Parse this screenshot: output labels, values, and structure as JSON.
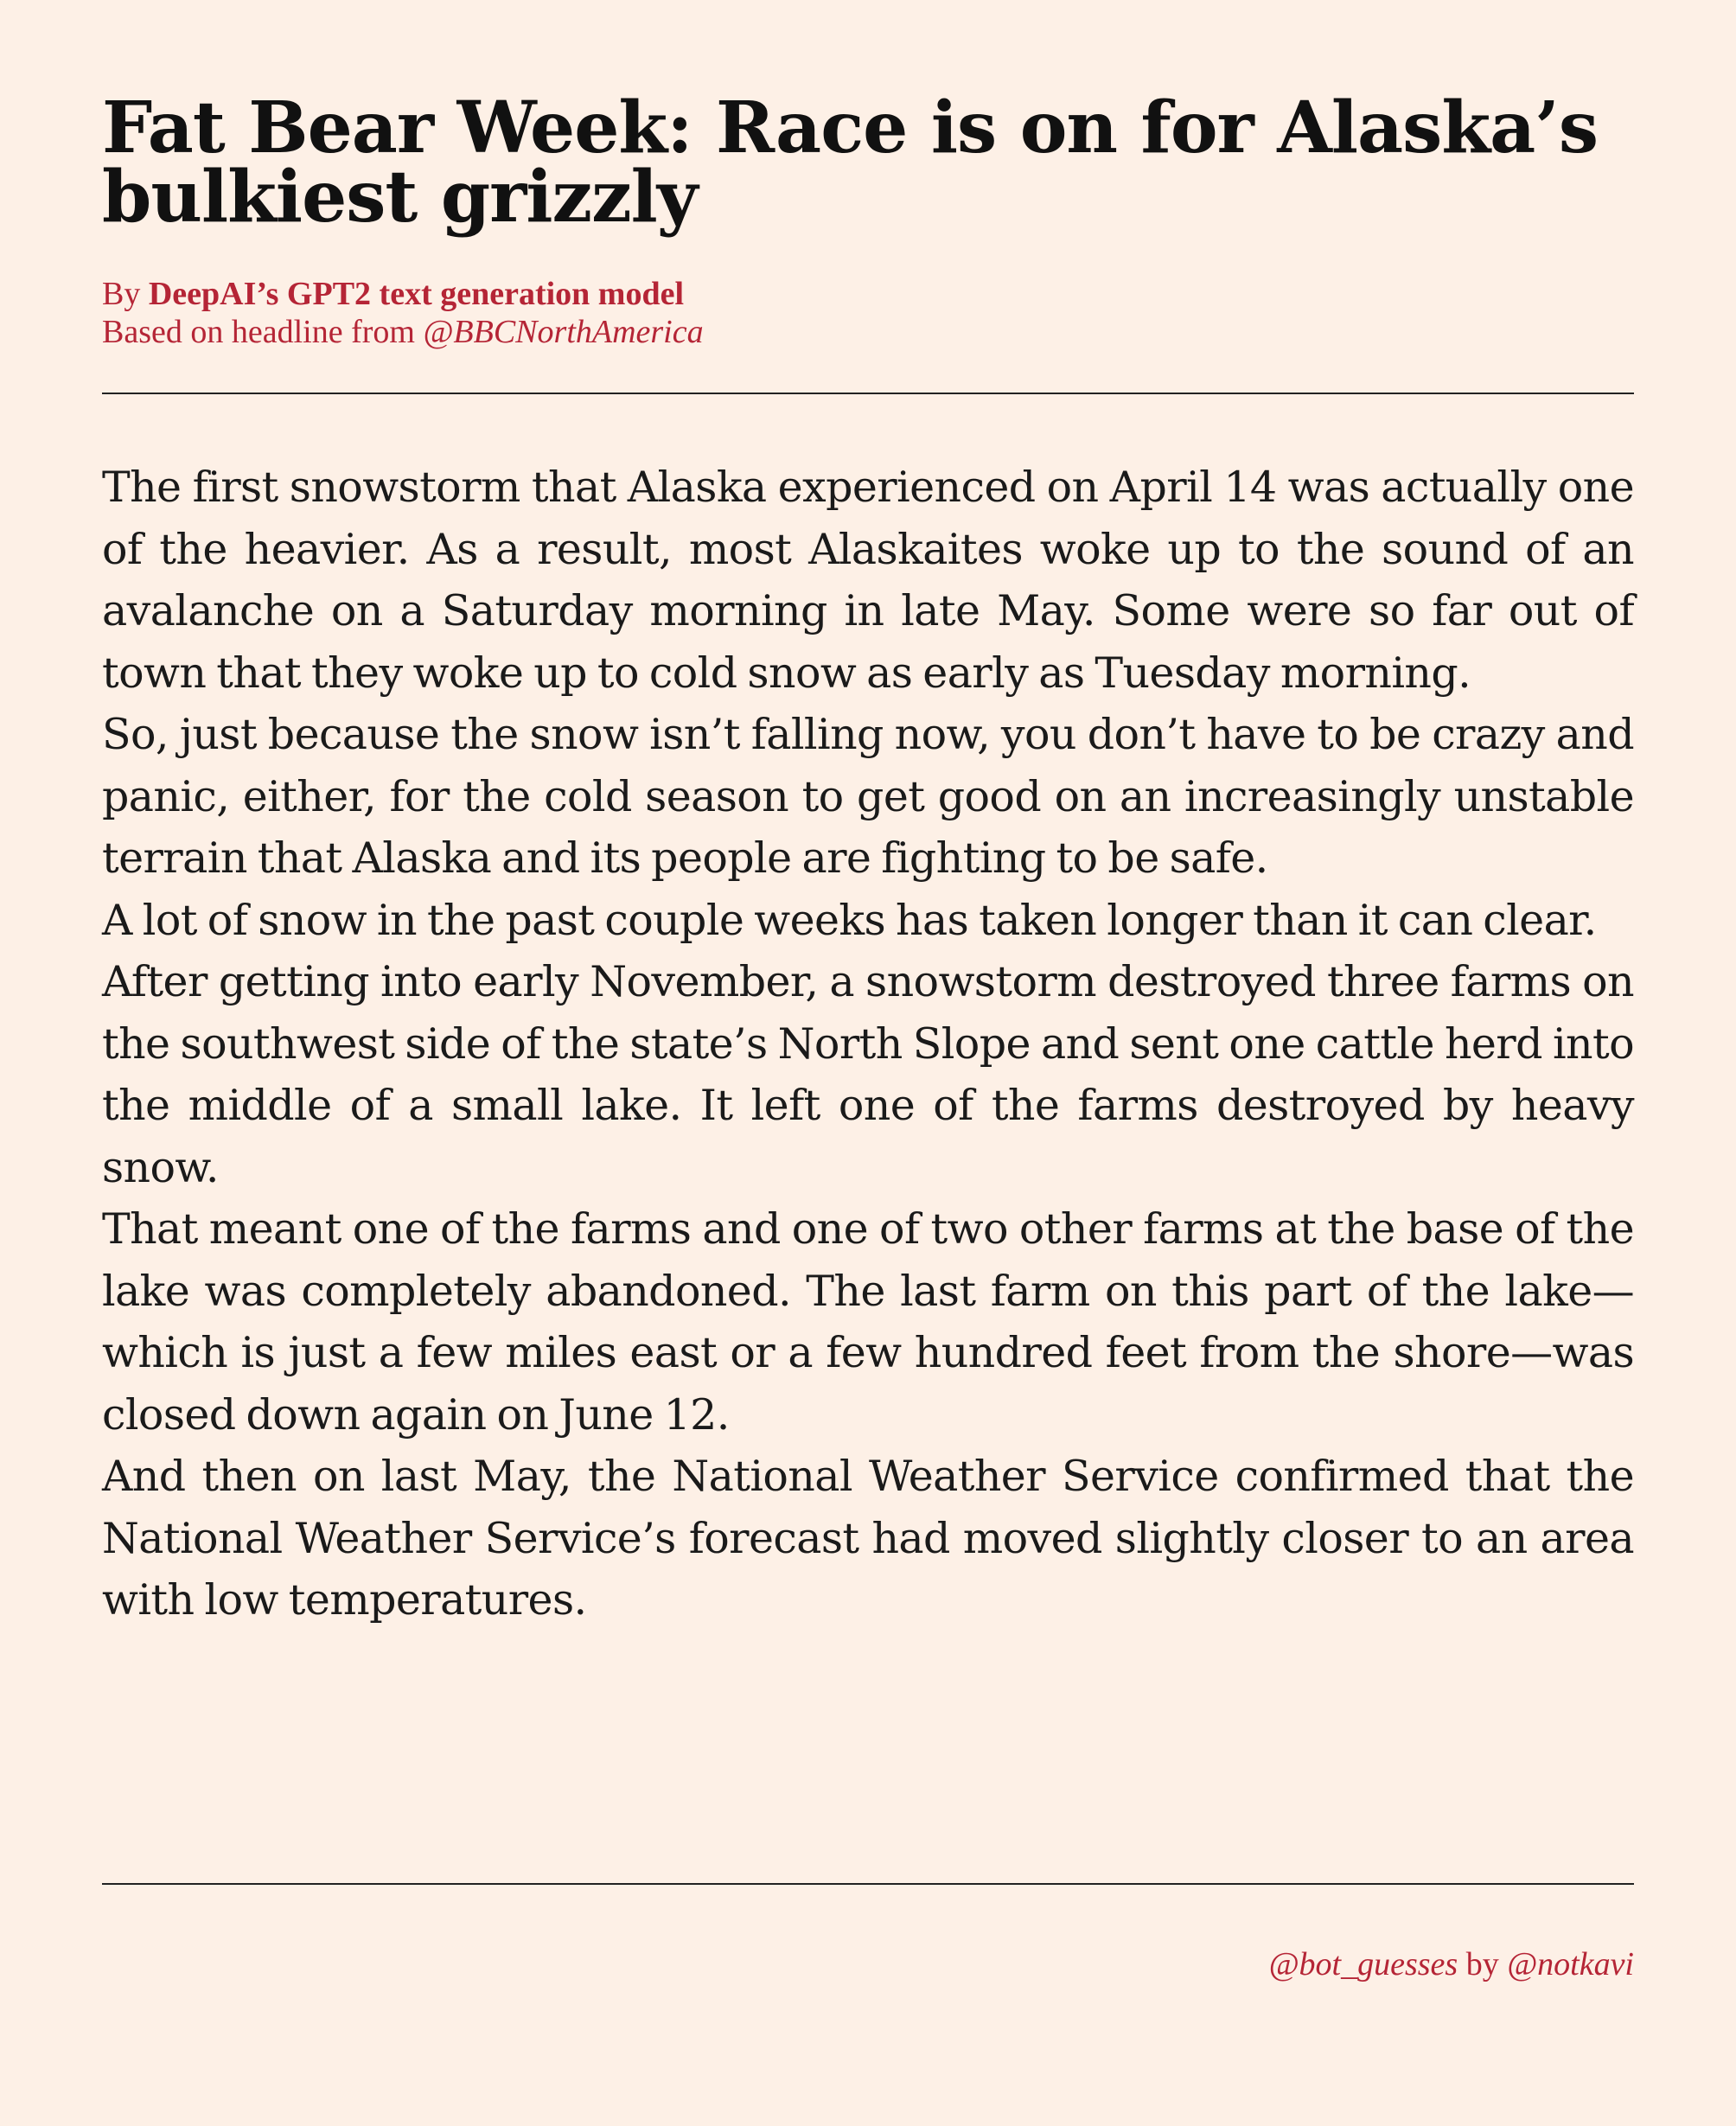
{
  "article": {
    "headline": "Fat Bear Week: Race is on for Alaska’s bulkiest grizzly",
    "byline": {
      "prefix": "By",
      "author": "DeepAI’s GPT2 text generation model",
      "source_prefix": "Based on headline from",
      "source_handle": "@BBCNorthAmerica"
    },
    "paragraphs": [
      "The first snowstorm that Alaska experienced on April 14 was actually one of the heavier. As a result, most Alaskaites woke up to the sound of an avalanche on a Saturday morning in late May.  Some were so far out of town that they woke up to cold snow as early as Tuesday morning.",
      "So, just because the snow isn’t falling now, you don’t have to be crazy and panic, either, for the cold season to get good on an increasingly unstable terrain that Alaska and its people are fighting to be safe.",
      "A lot of snow in the past couple weeks has taken longer than it can clear.",
      "After getting into early November, a snowstorm destroyed three farms on the southwest side of the state’s North Slope and sent one cattle herd into the middle of a small lake.  It left one of the farms destroyed by heavy snow.",
      "That meant one of the farms and one of two other farms at the base of the lake was completely abandoned. The last farm on this part of the lake—which is just a few miles east or a few hundred feet from the shore—was closed down again on June 12.",
      "And then on last May, the National Weather Service confirmed that the National Weather Service’s forecast had moved slightly closer to an area with low temperatures."
    ]
  },
  "footer": {
    "bot_handle": "@bot_guesses",
    "by_word": "by",
    "creator_handle": "@notkavi"
  },
  "colors": {
    "background": "#fdf0e6",
    "accent": "#b52536",
    "text": "#111111"
  }
}
